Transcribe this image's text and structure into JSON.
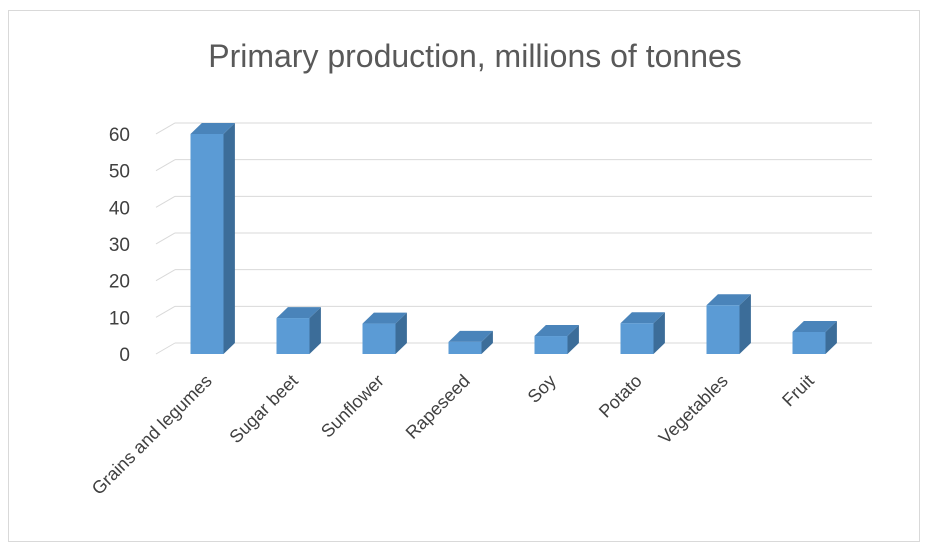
{
  "chart_data": {
    "type": "bar",
    "style": "3d-column",
    "title": "Primary production, millions of tonnes",
    "categories": [
      "Grains and legumes",
      "Sugar beet",
      "Sunflower",
      "Rapeseed",
      "Soy",
      "Potato",
      "Vegetables",
      "Fruit"
    ],
    "values": [
      60,
      9.8,
      8.3,
      3.3,
      4.9,
      8.4,
      13.3,
      6
    ],
    "ylim": [
      0,
      60
    ],
    "yticks": [
      0,
      10,
      20,
      30,
      40,
      50,
      60
    ],
    "grid": true,
    "legend": "none",
    "colors": {
      "bar_front": "#5b9bd5",
      "bar_side": "#3c6d99",
      "bar_top": "#4a84ba",
      "grid": "#d9d9d9"
    }
  }
}
